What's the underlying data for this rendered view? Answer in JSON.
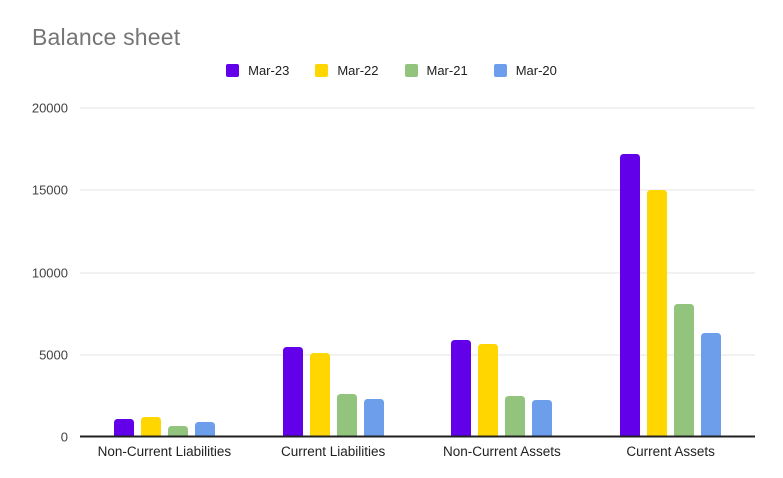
{
  "chart": {
    "title": "Balance sheet"
  },
  "chart_data": {
    "type": "bar",
    "title": "Balance sheet",
    "xlabel": "",
    "ylabel": "",
    "categories": [
      "Non-Current Liabilities",
      "Current Liabilities",
      "Non-Current Assets",
      "Current Assets"
    ],
    "series": [
      {
        "name": "Mar-23",
        "color": "#6200ea",
        "values": [
          1100,
          5500,
          5900,
          17200
        ]
      },
      {
        "name": "Mar-22",
        "color": "#ffd600",
        "values": [
          1200,
          5100,
          5650,
          15000
        ]
      },
      {
        "name": "Mar-21",
        "color": "#93c47d",
        "values": [
          700,
          2600,
          2500,
          8100
        ]
      },
      {
        "name": "Mar-20",
        "color": "#6d9eeb",
        "values": [
          900,
          2300,
          2250,
          6350
        ]
      }
    ],
    "ylim": [
      0,
      20000
    ],
    "yticks": [
      0,
      5000,
      10000,
      15000,
      20000
    ],
    "grid": true,
    "legend_position": "top",
    "colors": {
      "title_text": "#757575",
      "axis_text": "#424242",
      "category_text": "#212121",
      "gridline": "#e6e6e6",
      "axis_line": "#212121",
      "background": "#ffffff"
    }
  }
}
